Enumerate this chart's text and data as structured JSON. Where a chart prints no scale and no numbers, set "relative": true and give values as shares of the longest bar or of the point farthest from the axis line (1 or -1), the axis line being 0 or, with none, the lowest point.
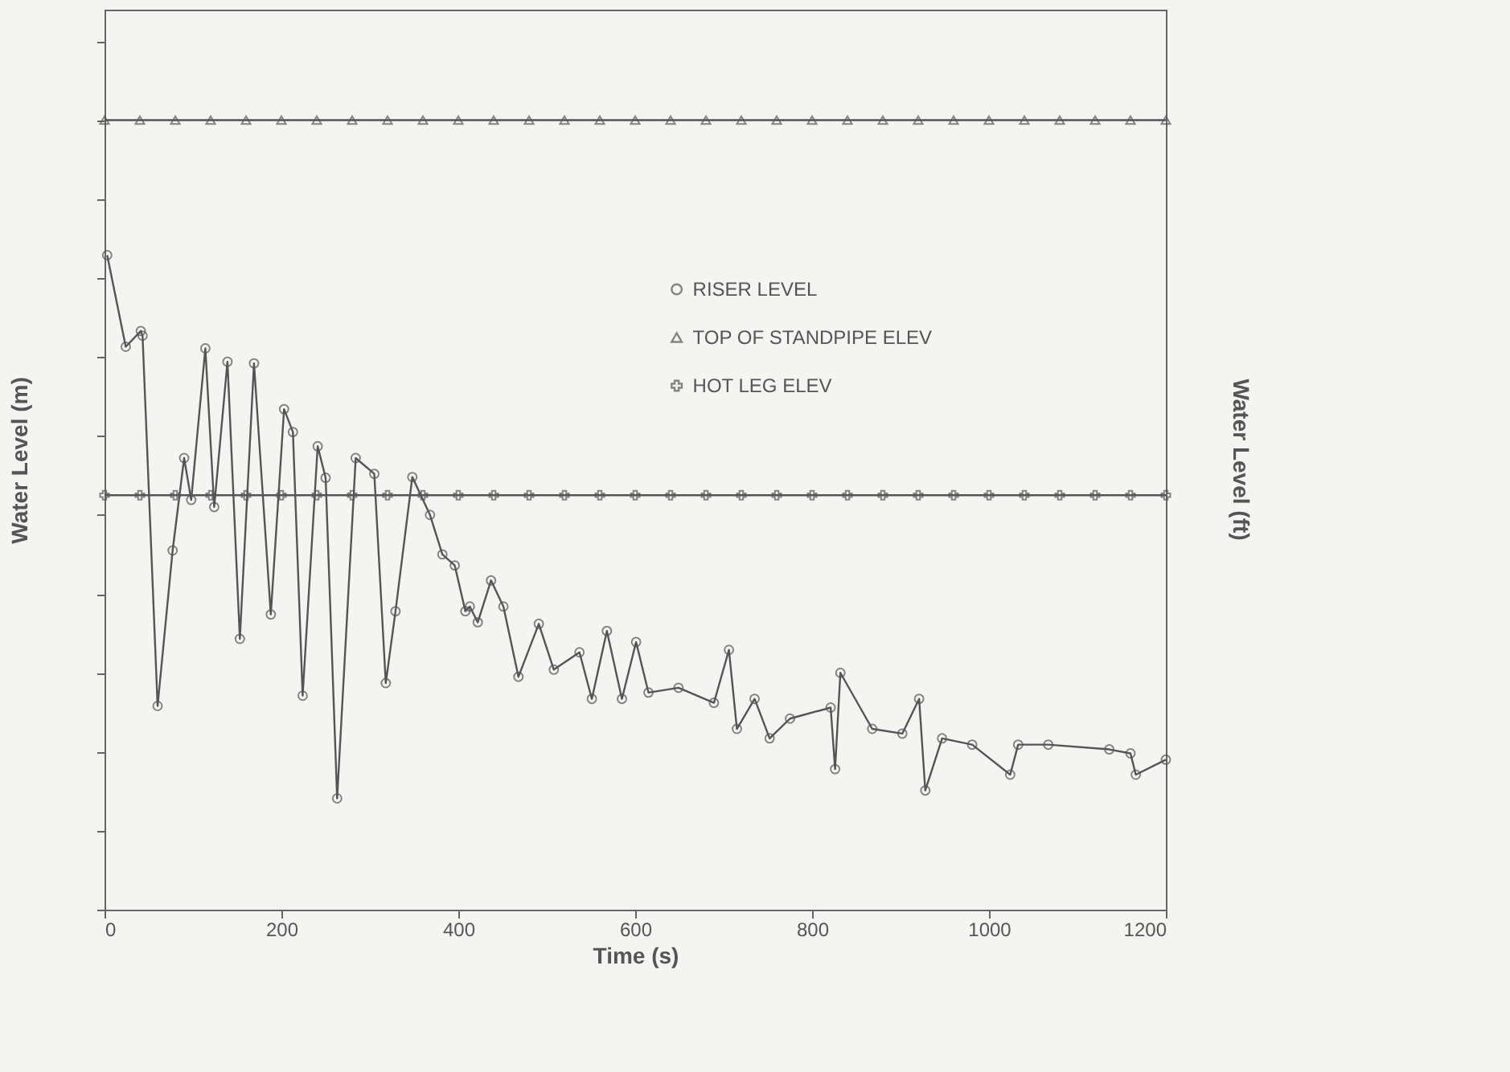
{
  "chart_data": {
    "type": "line",
    "relative": true,
    "xlabel": "Time (s)",
    "ylabel": "Water Level (m)",
    "y2label": "Water Level (ft)",
    "xlim": [
      0,
      1200
    ],
    "xticks": [
      0,
      200,
      400,
      600,
      800,
      {
        "value": 1000,
        "label": "1000"
      },
      {
        "value": 1200,
        "label": "1200"
      }
    ],
    "grid": false,
    "legend": "right",
    "line_style": "solid",
    "series": [
      {
        "name": "RISER LEVEL",
        "color": "#555555",
        "marker": "circle",
        "x": [
          3,
          24,
          41,
          43,
          60,
          77,
          90,
          98,
          114,
          124,
          139,
          153,
          169,
          188,
          203,
          213,
          224,
          241,
          250,
          263,
          284,
          305,
          318,
          329,
          348,
          368,
          382,
          396,
          408,
          413,
          422,
          437,
          451,
          468,
          491,
          508,
          537,
          551,
          568,
          585,
          601,
          615,
          649,
          689,
          706,
          715,
          735,
          752,
          775,
          821,
          826,
          832,
          868,
          902,
          921,
          928,
          947,
          981,
          1024,
          1033,
          1067,
          1136,
          1160,
          1166,
          1200
        ],
        "values": [
          0.829,
          0.713,
          0.733,
          0.727,
          0.258,
          0.455,
          0.572,
          0.519,
          0.711,
          0.51,
          0.694,
          0.343,
          0.692,
          0.374,
          0.634,
          0.605,
          0.271,
          0.587,
          0.547,
          0.141,
          0.572,
          0.552,
          0.287,
          0.378,
          0.548,
          0.5,
          0.45,
          0.436,
          0.378,
          0.384,
          0.364,
          0.417,
          0.384,
          0.295,
          0.362,
          0.304,
          0.326,
          0.267,
          0.353,
          0.267,
          0.339,
          0.275,
          0.281,
          0.262,
          0.329,
          0.229,
          0.267,
          0.217,
          0.242,
          0.256,
          0.178,
          0.3,
          0.229,
          0.223,
          0.267,
          0.151,
          0.217,
          0.209,
          0.171,
          0.209,
          0.209,
          0.203,
          0.198,
          0.171,
          0.19
        ]
      },
      {
        "name": "TOP OF STANDPIPE ELEV",
        "color": "#555555",
        "marker": "triangle",
        "x": [
          0,
          40,
          80,
          120,
          160,
          200,
          240,
          280,
          320,
          360,
          400,
          440,
          480,
          520,
          560,
          600,
          640,
          680,
          720,
          760,
          800,
          840,
          880,
          920,
          960,
          1000,
          1040,
          1080,
          1120,
          1160,
          1200
        ],
        "values": [
          1,
          1,
          1,
          1,
          1,
          1,
          1,
          1,
          1,
          1,
          1,
          1,
          1,
          1,
          1,
          1,
          1,
          1,
          1,
          1,
          1,
          1,
          1,
          1,
          1,
          1,
          1,
          1,
          1,
          1,
          1
        ]
      },
      {
        "name": "HOT LEG ELEV",
        "color": "#555555",
        "marker": "cross",
        "x": [
          0,
          40,
          80,
          120,
          160,
          200,
          240,
          280,
          320,
          360,
          400,
          440,
          480,
          520,
          560,
          600,
          640,
          680,
          720,
          760,
          800,
          840,
          880,
          920,
          960,
          1000,
          1040,
          1080,
          1120,
          1160,
          1200
        ],
        "values": [
          0.525,
          0.525,
          0.525,
          0.525,
          0.525,
          0.525,
          0.525,
          0.525,
          0.525,
          0.525,
          0.525,
          0.525,
          0.525,
          0.525,
          0.525,
          0.525,
          0.525,
          0.525,
          0.525,
          0.525,
          0.525,
          0.525,
          0.525,
          0.525,
          0.525,
          0.525,
          0.525,
          0.525,
          0.525,
          0.525,
          0.525
        ]
      }
    ]
  }
}
